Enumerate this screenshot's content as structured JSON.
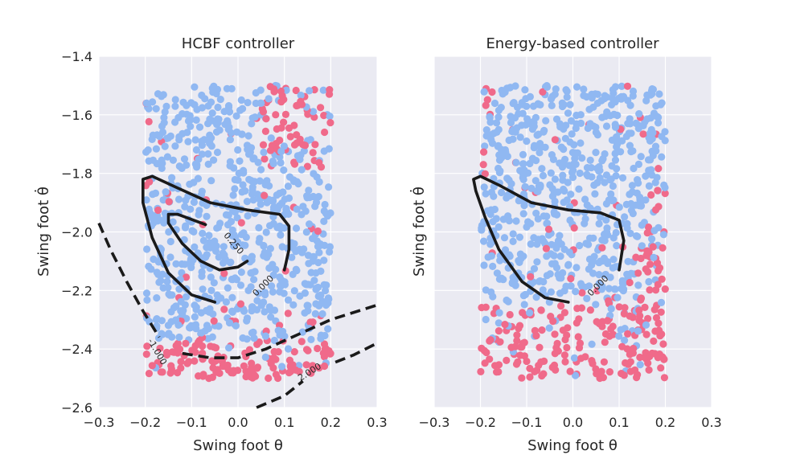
{
  "figure": {
    "background": "#ffffff",
    "axes_background": "#eaeaf2",
    "grid_color": "#ffffff"
  },
  "colors": {
    "safe": "#90b8f2",
    "unsafe": "#f06a8a",
    "contour": "#1a1a1a"
  },
  "chart_data": [
    {
      "type": "scatter",
      "id": "hcbf",
      "title": "HCBF controller",
      "xlabel": "Swing foot θ",
      "ylabel": "Swing foot θ̇",
      "xlim": [
        -0.3,
        0.3
      ],
      "ylim": [
        -2.6,
        -1.4
      ],
      "xticks": [
        -0.3,
        -0.2,
        -0.1,
        0.0,
        0.1,
        0.2,
        0.3
      ],
      "xtick_labels": [
        "−0.3",
        "−0.2",
        "−0.1",
        "0.0",
        "0.1",
        "0.2",
        "0.3"
      ],
      "yticks": [
        -1.4,
        -1.6,
        -1.8,
        -2.0,
        -2.2,
        -2.4,
        -2.6
      ],
      "ytick_labels": [
        "−1.4",
        "−1.6",
        "−1.8",
        "−2.0",
        "−2.2",
        "−2.4",
        "−2.6"
      ],
      "show_yticklabels": true,
      "scatter_region": {
        "x": [
          -0.2,
          0.2
        ],
        "y": [
          -2.5,
          -1.5
        ]
      },
      "contours": [
        {
          "level": "0.000",
          "style": "solid",
          "label_at": [
            0.055,
            -2.185
          ],
          "label_rotation": -45,
          "points": [
            [
              -0.05,
              -2.24
            ],
            [
              -0.1,
              -2.215
            ],
            [
              -0.15,
              -2.14
            ],
            [
              -0.185,
              -2.02
            ],
            [
              -0.205,
              -1.9
            ],
            [
              -0.205,
              -1.82
            ],
            [
              -0.185,
              -1.81
            ],
            [
              -0.13,
              -1.85
            ],
            [
              -0.06,
              -1.9
            ],
            [
              0.02,
              -1.925
            ],
            [
              0.09,
              -1.94
            ],
            [
              0.11,
              -1.98
            ],
            [
              0.11,
              -2.06
            ],
            [
              0.1,
              -2.13
            ]
          ]
        },
        {
          "level": "0.250",
          "style": "solid",
          "label_at": [
            -0.01,
            -2.04
          ],
          "label_rotation": 50,
          "points": [
            [
              0.02,
              -2.1
            ],
            [
              0.0,
              -2.12
            ],
            [
              -0.04,
              -2.13
            ],
            [
              -0.08,
              -2.1
            ],
            [
              -0.12,
              -2.04
            ],
            [
              -0.15,
              -1.97
            ],
            [
              -0.15,
              -1.94
            ],
            [
              -0.13,
              -1.94
            ],
            [
              -0.07,
              -1.975
            ]
          ]
        },
        {
          "level": "-1.000",
          "style": "dashed",
          "label_at": [
            -0.175,
            -2.41
          ],
          "label_rotation": 60,
          "points": [
            [
              -0.3,
              -1.97
            ],
            [
              -0.275,
              -2.06
            ],
            [
              -0.24,
              -2.17
            ],
            [
              -0.205,
              -2.27
            ],
            [
              -0.17,
              -2.36
            ]
          ]
        },
        {
          "level": "-1.000",
          "style": "dashed",
          "label_at": null,
          "label_rotation": 0,
          "points": [
            [
              -0.12,
              -2.415
            ],
            [
              -0.06,
              -2.43
            ],
            [
              0.0,
              -2.43
            ],
            [
              0.06,
              -2.4
            ],
            [
              0.13,
              -2.35
            ],
            [
              0.2,
              -2.3
            ],
            [
              0.3,
              -2.25
            ]
          ]
        },
        {
          "level": "2.000",
          "style": "dashed",
          "label_at": [
            0.155,
            -2.48
          ],
          "label_rotation": -32,
          "points": [
            [
              0.04,
              -2.6
            ],
            [
              0.1,
              -2.56
            ],
            [
              0.14,
              -2.51
            ]
          ]
        },
        {
          "level": "2.000",
          "style": "dashed",
          "label_at": null,
          "label_rotation": 0,
          "points": [
            [
              0.21,
              -2.445
            ],
            [
              0.25,
              -2.42
            ],
            [
              0.3,
              -2.38
            ]
          ]
        }
      ]
    },
    {
      "type": "scatter",
      "id": "energy",
      "title": "Energy-based controller",
      "xlabel": "Swing foot θ",
      "ylabel": "Swing foot θ̇",
      "xlim": [
        -0.3,
        0.3
      ],
      "ylim": [
        -2.6,
        -1.4
      ],
      "xticks": [
        -0.3,
        -0.2,
        -0.1,
        0.0,
        0.1,
        0.2,
        0.3
      ],
      "xtick_labels": [
        "−0.3",
        "−0.2",
        "−0.1",
        "0.0",
        "0.1",
        "0.2",
        "0.3"
      ],
      "yticks": [
        -1.4,
        -1.6,
        -1.8,
        -2.0,
        -2.2,
        -2.4,
        -2.6
      ],
      "ytick_labels": [],
      "show_yticklabels": false,
      "scatter_region": {
        "x": [
          -0.2,
          0.2
        ],
        "y": [
          -2.5,
          -1.5
        ]
      },
      "contours": [
        {
          "level": "0.000",
          "style": "solid",
          "label_at": [
            0.055,
            -2.185
          ],
          "label_rotation": -45,
          "points": [
            [
              -0.01,
              -2.24
            ],
            [
              -0.06,
              -2.225
            ],
            [
              -0.11,
              -2.17
            ],
            [
              -0.16,
              -2.06
            ],
            [
              -0.19,
              -1.95
            ],
            [
              -0.21,
              -1.86
            ],
            [
              -0.215,
              -1.82
            ],
            [
              -0.2,
              -1.81
            ],
            [
              -0.16,
              -1.84
            ],
            [
              -0.09,
              -1.9
            ],
            [
              -0.01,
              -1.925
            ],
            [
              0.06,
              -1.935
            ],
            [
              0.1,
              -1.96
            ],
            [
              0.11,
              -2.03
            ],
            [
              0.1,
              -2.13
            ]
          ]
        }
      ]
    }
  ]
}
